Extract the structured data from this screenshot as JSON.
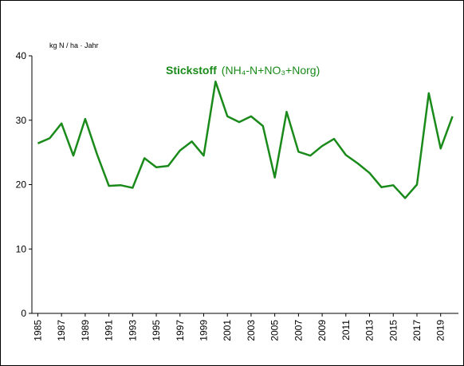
{
  "chart_data": {
    "type": "line",
    "title": "Stickstoff",
    "subtitle": "(NH₄-N+NO₃+Norg)",
    "y_label": "kg N / ha · Jahr",
    "x": [
      1985,
      1986,
      1987,
      1988,
      1989,
      1990,
      1991,
      1992,
      1993,
      1994,
      1995,
      1996,
      1997,
      1998,
      1999,
      2000,
      2001,
      2002,
      2003,
      2004,
      2005,
      2006,
      2007,
      2008,
      2009,
      2010,
      2011,
      2012,
      2013,
      2014,
      2015,
      2016,
      2017,
      2018,
      2019,
      2020
    ],
    "series": [
      {
        "name": "Stickstoff",
        "color": "#1a8a1a",
        "values": [
          26.4,
          27.2,
          29.5,
          24.5,
          30.2,
          24.7,
          19.8,
          19.9,
          19.5,
          24.1,
          22.7,
          22.9,
          25.3,
          26.7,
          24.5,
          36.0,
          30.6,
          29.7,
          30.6,
          29.1,
          21.1,
          31.3,
          25.1,
          24.5,
          26.0,
          27.1,
          24.6,
          23.3,
          21.8,
          19.6,
          19.9,
          17.9,
          20.0,
          34.2,
          25.6,
          30.6
        ]
      }
    ],
    "xlim": [
      1984.5,
      2020.5
    ],
    "xticks": [
      1985,
      1987,
      1989,
      1991,
      1993,
      1995,
      1997,
      1999,
      2001,
      2003,
      2005,
      2007,
      2009,
      2011,
      2013,
      2015,
      2017,
      2019
    ],
    "ylim": [
      0,
      40
    ],
    "yticks": [
      0,
      10,
      20,
      30,
      40
    ],
    "grid": false
  }
}
